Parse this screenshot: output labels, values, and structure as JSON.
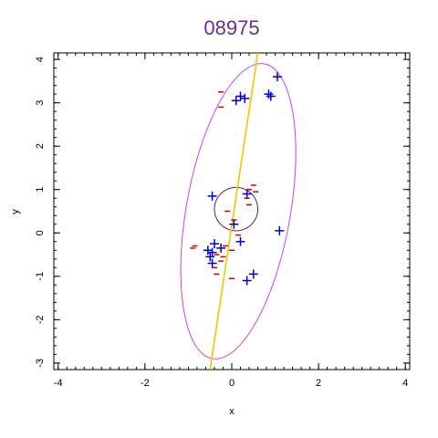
{
  "chart_data": {
    "type": "scatter",
    "title": "08975",
    "xlabel": "x",
    "ylabel": "y",
    "xlim": [
      -4.1,
      4.1
    ],
    "ylim": [
      -3.15,
      4.15
    ],
    "xticks": [
      -4,
      -2,
      0,
      2,
      4
    ],
    "yticks": [
      -3,
      -2,
      -1,
      0,
      1,
      2,
      3,
      4
    ],
    "xtick_labels": [
      "-4",
      "-2",
      "0",
      "2",
      "4"
    ],
    "ytick_labels": [
      "-3",
      "-2",
      "-1",
      "0",
      "1",
      "2",
      "3",
      "4"
    ],
    "grid": false,
    "series": [
      {
        "marker": "plus",
        "color": "#0000cc",
        "points": [
          [
            1.05,
            3.6
          ],
          [
            0.2,
            3.15
          ],
          [
            0.1,
            3.05
          ],
          [
            0.3,
            3.1
          ],
          [
            0.85,
            3.2
          ],
          [
            0.9,
            3.15
          ],
          [
            -0.45,
            0.85
          ],
          [
            0.35,
            0.9
          ],
          [
            0.05,
            0.2
          ],
          [
            1.1,
            0.05
          ],
          [
            -0.4,
            -0.25
          ],
          [
            0.2,
            -0.2
          ],
          [
            -0.25,
            -0.35
          ],
          [
            -0.55,
            -0.4
          ],
          [
            -0.45,
            -0.45
          ],
          [
            -0.5,
            -0.55
          ],
          [
            -0.45,
            -0.7
          ],
          [
            0.35,
            -1.1
          ],
          [
            0.5,
            -0.95
          ]
        ]
      },
      {
        "marker": "minus",
        "color": "#cc0000",
        "points": [
          [
            -0.25,
            3.25
          ],
          [
            -0.25,
            2.9
          ],
          [
            0.5,
            1.1
          ],
          [
            0.4,
            1.0
          ],
          [
            0.55,
            0.95
          ],
          [
            0.35,
            0.8
          ],
          [
            0.4,
            0.65
          ],
          [
            -0.1,
            0.5
          ],
          [
            0.05,
            0.3
          ],
          [
            0.15,
            -0.05
          ],
          [
            -0.15,
            -0.3
          ],
          [
            0.0,
            -0.4
          ],
          [
            -0.9,
            -0.35
          ],
          [
            -0.85,
            -0.3
          ],
          [
            -0.35,
            -0.5
          ],
          [
            -0.2,
            -0.55
          ],
          [
            -0.25,
            -0.65
          ],
          [
            -0.4,
            -0.8
          ],
          [
            -0.35,
            -0.95
          ],
          [
            0.0,
            -1.05
          ]
        ]
      }
    ],
    "overlays": {
      "ellipse": {
        "center": [
          0.15,
          0.5
        ],
        "semi_major": 3.45,
        "semi_minor": 1.2,
        "angle_deg": 80,
        "color": "#cc44ee"
      },
      "circle": {
        "center": [
          0.1,
          0.55
        ],
        "radius": 0.5,
        "color": "#551a8b"
      },
      "line": {
        "from": [
          -0.5,
          -3.15
        ],
        "to": [
          0.6,
          4.15
        ],
        "color": "#f5c400"
      }
    },
    "frame_color": "#000000"
  }
}
